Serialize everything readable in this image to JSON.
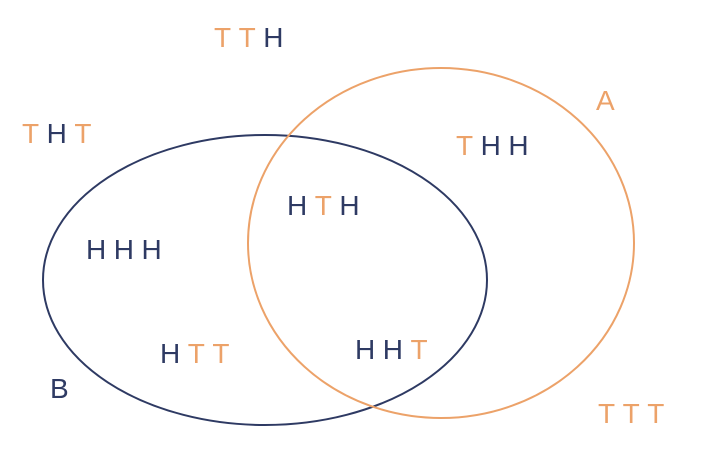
{
  "colors": {
    "heads": "#2e3a63",
    "tails": "#eca269"
  },
  "sets": {
    "A": {
      "label": "A",
      "color": "#eca269"
    },
    "B": {
      "label": "B",
      "color": "#2e3a63"
    }
  },
  "outcomes": {
    "tth": [
      "T",
      "T",
      "H"
    ],
    "tht": [
      "T",
      "H",
      "T"
    ],
    "thh": [
      "T",
      "H",
      "H"
    ],
    "hth": [
      "H",
      "T",
      "H"
    ],
    "hhh": [
      "H",
      "H",
      "H"
    ],
    "htt": [
      "H",
      "T",
      "T"
    ],
    "hht": [
      "H",
      "H",
      "T"
    ],
    "ttt": [
      "T",
      "T",
      "T"
    ]
  }
}
